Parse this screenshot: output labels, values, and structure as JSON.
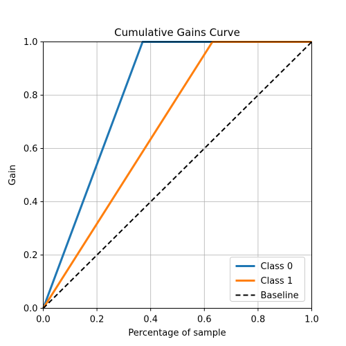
{
  "chart_data": {
    "type": "line",
    "title": "Cumulative Gains Curve",
    "xlabel": "Percentage of sample",
    "ylabel": "Gain",
    "xlim": [
      0.0,
      1.0
    ],
    "ylim": [
      0.0,
      1.0
    ],
    "grid": true,
    "legend_position": "lower-right",
    "x_ticks": [
      "0.0",
      "0.2",
      "0.4",
      "0.6",
      "0.8",
      "1.0"
    ],
    "y_ticks": [
      "0.0",
      "0.2",
      "0.4",
      "0.6",
      "0.8",
      "1.0"
    ],
    "series": [
      {
        "name": "Class 0",
        "color": "#1f77b4",
        "style": "solid",
        "x": [
          0.0,
          0.37,
          1.0
        ],
        "y": [
          0.0,
          1.0,
          1.0
        ]
      },
      {
        "name": "Class 1",
        "color": "#ff7f0e",
        "style": "solid",
        "x": [
          0.0,
          0.63,
          1.0
        ],
        "y": [
          0.0,
          1.0,
          1.0
        ]
      },
      {
        "name": "Baseline",
        "color": "#000000",
        "style": "dashed",
        "x": [
          0.0,
          1.0
        ],
        "y": [
          0.0,
          1.0
        ]
      }
    ]
  }
}
